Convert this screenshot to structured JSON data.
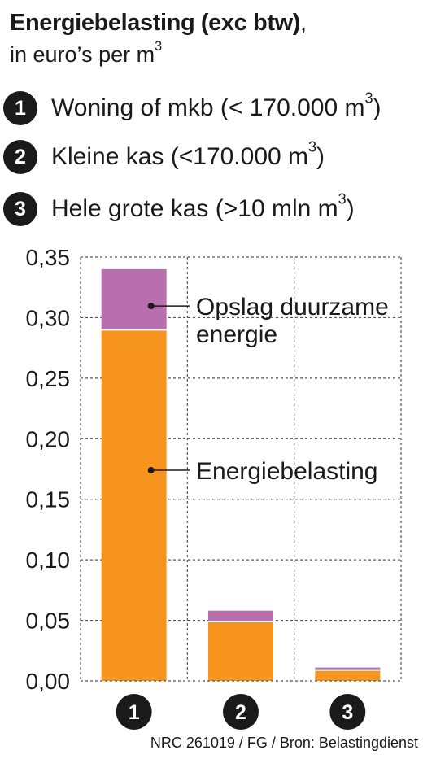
{
  "title": {
    "bold": "Energiebelasting (exc btw)",
    "rest": ",",
    "subtitle": "in euro’s per m",
    "subtitle_sup": "3"
  },
  "legend_items": [
    {
      "number": "1",
      "label": "Woning of mkb (< 170.000 m",
      "sup": "3",
      "end": ")"
    },
    {
      "number": "2",
      "label": "Kleine kas (<170.000 m",
      "sup": "3",
      "end": ")"
    },
    {
      "number": "3",
      "label": "Hele grote kas (>10 mln m",
      "sup": "3",
      "end": ")"
    }
  ],
  "colors": {
    "energiebelasting": "#f7941d",
    "opslag": "#b86fae",
    "text": "#1a1a1a",
    "grid": "#555555"
  },
  "chart_data": {
    "type": "bar",
    "stacked": true,
    "categories": [
      "1",
      "2",
      "3"
    ],
    "series": [
      {
        "name": "Energiebelasting",
        "values": [
          0.29,
          0.049,
          0.009
        ]
      },
      {
        "name": "Opslag duurzame energie",
        "values": [
          0.05,
          0.009,
          0.002
        ]
      }
    ],
    "ylim": [
      0,
      0.35
    ],
    "yticks": [
      "0,00",
      "0,05",
      "0,10",
      "0,15",
      "0,20",
      "0,25",
      "0,30",
      "0,35"
    ],
    "grid": true,
    "annotations": [
      {
        "series": "Opslag duurzame energie",
        "lines": [
          "Opslag duurzame",
          "energie"
        ]
      },
      {
        "series": "Energiebelasting",
        "lines": [
          "Energiebelasting"
        ]
      }
    ]
  },
  "source": "NRC 261019 / FG / Bron: Belastingdienst"
}
